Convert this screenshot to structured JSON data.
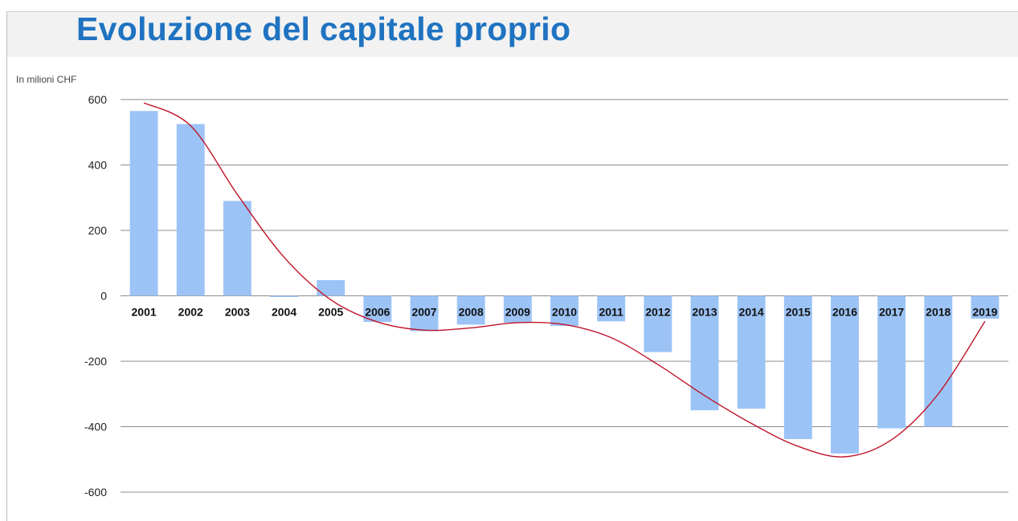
{
  "title": "Evoluzione del capitale proprio",
  "unit_label": "In milioni CHF",
  "colors": {
    "title": "#1f73c1",
    "bar": "#9cc3f5",
    "trend": "#c0142a",
    "grid": "#8c8c8c"
  },
  "chart_data": {
    "type": "bar",
    "title": "Evoluzione del capitale proprio",
    "ylabel": "In milioni CHF",
    "ylim": [
      -600,
      600
    ],
    "yticks": [
      600,
      400,
      200,
      0,
      -200,
      -400,
      -600
    ],
    "grid": true,
    "categories": [
      "2001",
      "2002",
      "2003",
      "2004",
      "2005",
      "2006",
      "2007",
      "2008",
      "2009",
      "2010",
      "2011",
      "2012",
      "2013",
      "2014",
      "2015",
      "2016",
      "2017",
      "2018",
      "2019"
    ],
    "values": [
      565,
      525,
      290,
      -2,
      48,
      -80,
      -108,
      -88,
      -82,
      -92,
      -78,
      -172,
      -350,
      -345,
      -438,
      -482,
      -405,
      -400,
      -70
    ],
    "trend": [
      590,
      520,
      310,
      118,
      -12,
      -80,
      -105,
      -98,
      -82,
      -88,
      -128,
      -210,
      -305,
      -390,
      -460,
      -492,
      -440,
      -300,
      -78
    ]
  }
}
